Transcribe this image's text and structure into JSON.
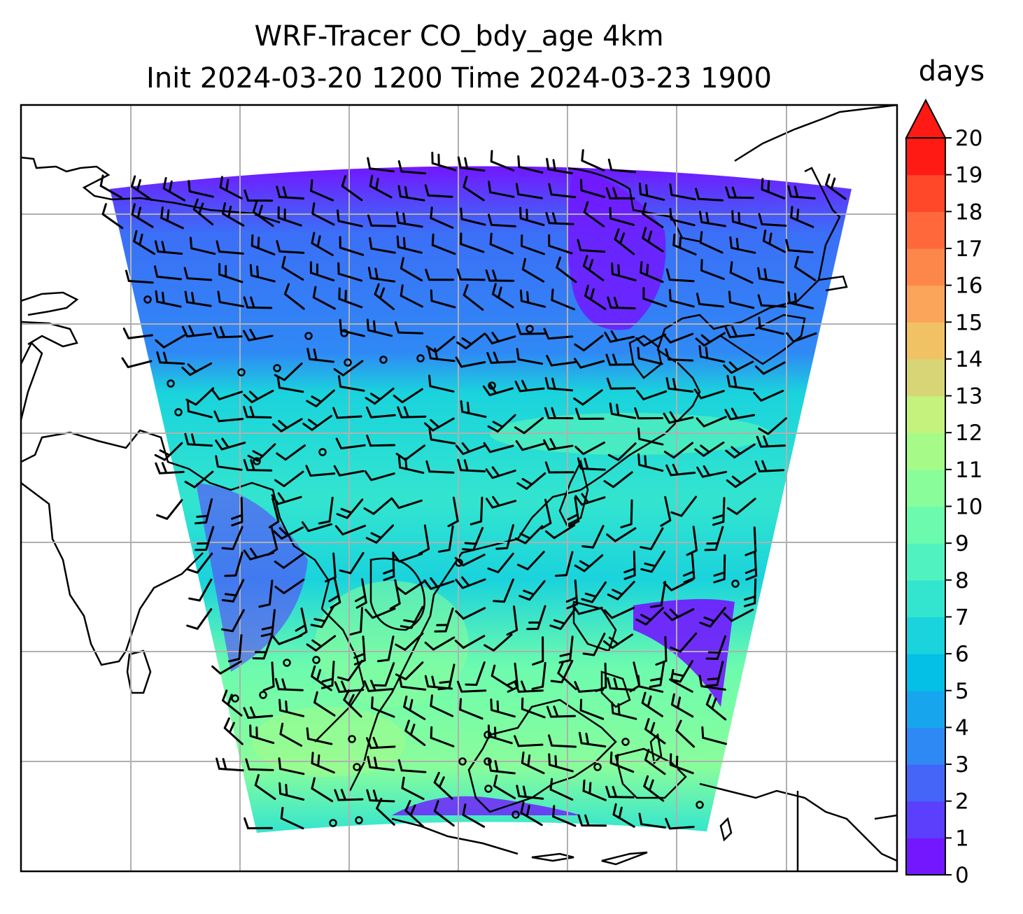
{
  "title_line1": "WRF-Tracer CO_bdy_age 4km",
  "title_line2": "Init 2024-03-20 1200 Time 2024-03-23 1900",
  "colorbar": {
    "unit": "days",
    "ticks": [
      "0",
      "1",
      "2",
      "3",
      "4",
      "5",
      "6",
      "7",
      "8",
      "9",
      "10",
      "11",
      "12",
      "13",
      "14",
      "15",
      "16",
      "17",
      "18",
      "19",
      "20"
    ],
    "min": 0,
    "max": 20,
    "extend": "max",
    "colors": [
      "#7217ff",
      "#5b3ffd",
      "#4565f9",
      "#2f89f5",
      "#17a6ee",
      "#04c0e6",
      "#1ad3dc",
      "#33e5cf",
      "#50f3c0",
      "#6cfbae",
      "#8afd9b",
      "#a6fb88",
      "#c4f27d",
      "#d8d577",
      "#f0c264",
      "#fba55a",
      "#fd874a",
      "#ff683a",
      "#ff472a",
      "#ff1a14"
    ]
  },
  "map": {
    "field": "CO_bdy_age",
    "grid": "on",
    "coastlines": "on",
    "wind_barbs": "on"
  }
}
